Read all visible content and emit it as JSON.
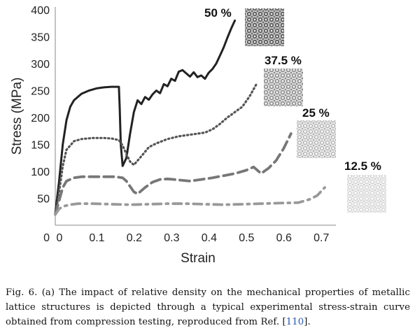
{
  "caption": {
    "prefix": "Fig. 6. (a) The impact of relative density on the mechanical properties of metallic lattice structures is depicted through a typical experimental stress-strain curve obtained from compression testing, reproduced from Ref. [",
    "ref": "110",
    "suffix": "]."
  },
  "chart_data": {
    "type": "line",
    "title": "",
    "xlabel": "Strain",
    "ylabel": "Stress (MPa)",
    "xlim": [
      0,
      0.75
    ],
    "ylim": [
      0,
      400
    ],
    "xticks": [
      "0",
      "0.1",
      "0.2",
      "0.3",
      "0.4",
      "0.5",
      "0.6",
      "0.7"
    ],
    "yticks": [
      "0",
      "50",
      "100",
      "150",
      "200",
      "250",
      "300",
      "350",
      "400"
    ],
    "grid": false,
    "series": [
      {
        "name": "50 %",
        "color": "#222222",
        "style": "solid",
        "x": [
          0,
          0.01,
          0.02,
          0.03,
          0.04,
          0.05,
          0.07,
          0.09,
          0.11,
          0.13,
          0.15,
          0.17,
          0.172,
          0.175,
          0.18,
          0.19,
          0.2,
          0.21,
          0.22,
          0.23,
          0.24,
          0.25,
          0.26,
          0.27,
          0.28,
          0.29,
          0.3,
          0.31,
          0.32,
          0.33,
          0.34,
          0.35,
          0.36,
          0.37,
          0.38,
          0.39,
          0.4,
          0.41,
          0.42,
          0.43,
          0.44,
          0.45,
          0.46,
          0.47,
          0.48
        ],
        "y": [
          22,
          80,
          150,
          195,
          220,
          232,
          244,
          250,
          254,
          256,
          257,
          257,
          220,
          150,
          110,
          125,
          170,
          210,
          232,
          225,
          238,
          233,
          243,
          250,
          245,
          262,
          258,
          272,
          268,
          285,
          288,
          282,
          276,
          284,
          275,
          278,
          272,
          283,
          290,
          300,
          315,
          330,
          348,
          365,
          380
        ]
      },
      {
        "name": "37.5 %",
        "color": "#555555",
        "style": "dotted",
        "x": [
          0,
          0.01,
          0.02,
          0.03,
          0.05,
          0.07,
          0.1,
          0.13,
          0.15,
          0.17,
          0.18,
          0.19,
          0.2,
          0.21,
          0.23,
          0.25,
          0.27,
          0.3,
          0.33,
          0.36,
          0.38,
          0.4,
          0.42,
          0.44,
          0.46,
          0.48,
          0.5,
          0.52,
          0.54
        ],
        "y": [
          20,
          60,
          110,
          140,
          156,
          160,
          162,
          162,
          161,
          158,
          148,
          132,
          118,
          112,
          128,
          145,
          152,
          160,
          165,
          168,
          170,
          172,
          178,
          188,
          200,
          210,
          220,
          240,
          265
        ]
      },
      {
        "name": "25 %",
        "color": "#777777",
        "style": "dashed",
        "x": [
          0,
          0.01,
          0.02,
          0.03,
          0.05,
          0.07,
          0.1,
          0.13,
          0.16,
          0.18,
          0.19,
          0.2,
          0.21,
          0.22,
          0.24,
          0.26,
          0.28,
          0.3,
          0.33,
          0.36,
          0.39,
          0.42,
          0.45,
          0.48,
          0.51,
          0.53,
          0.55,
          0.57,
          0.59,
          0.61,
          0.63
        ],
        "y": [
          20,
          45,
          70,
          82,
          88,
          90,
          90,
          90,
          90,
          88,
          82,
          72,
          62,
          58,
          70,
          80,
          85,
          86,
          84,
          82,
          85,
          88,
          92,
          96,
          102,
          108,
          96,
          106,
          120,
          142,
          170
        ]
      },
      {
        "name": "12.5 %",
        "color": "#999999",
        "style": "dashdot",
        "x": [
          0,
          0.01,
          0.02,
          0.04,
          0.06,
          0.1,
          0.15,
          0.2,
          0.25,
          0.3,
          0.35,
          0.4,
          0.45,
          0.5,
          0.55,
          0.6,
          0.65,
          0.68,
          0.7,
          0.72
        ],
        "y": [
          20,
          30,
          35,
          38,
          40,
          40,
          39,
          38,
          39,
          40,
          40,
          39,
          38,
          39,
          40,
          41,
          42,
          48,
          55,
          70
        ]
      }
    ],
    "series_labels_printed": [
      "50 %",
      "37.5 %",
      "25 %",
      "12.5 %"
    ]
  }
}
